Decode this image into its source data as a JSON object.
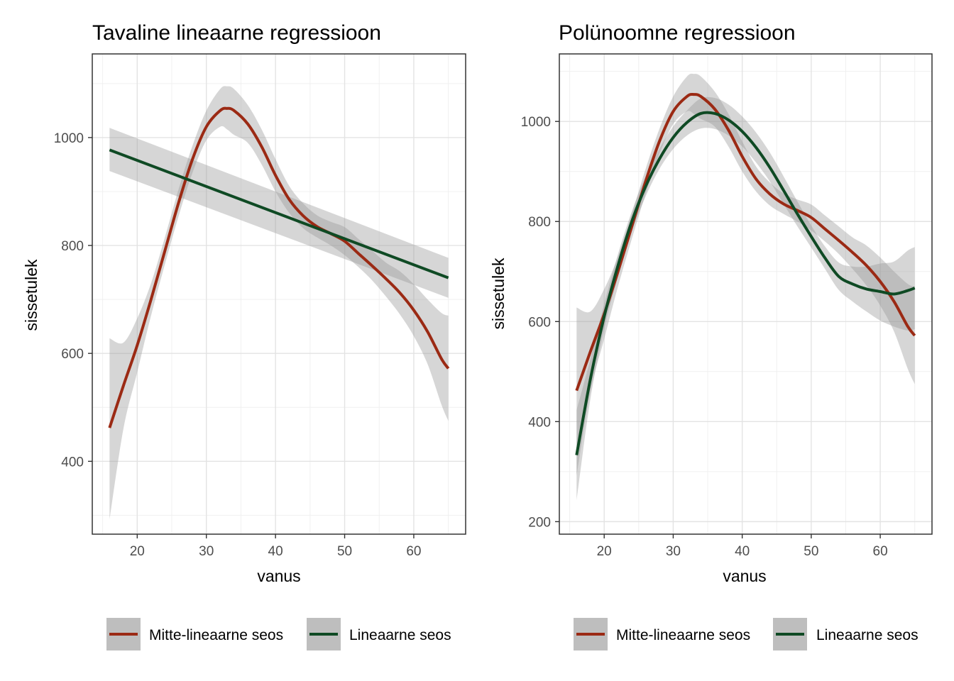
{
  "chart_data": [
    {
      "type": "line",
      "title": "Tavaline lineaarne regressioon",
      "xlabel": "vanus",
      "ylabel": "sissetulek",
      "xlim": [
        13.5,
        67.5
      ],
      "ylim": [
        265,
        1155
      ],
      "x_ticks": [
        20,
        30,
        40,
        50,
        60
      ],
      "y_ticks": [
        400,
        600,
        800,
        1000
      ],
      "grid": true,
      "legend_position": "bottom",
      "series": [
        {
          "name": "Mitte-lineaarne seos",
          "color": "#9B2A14",
          "x": [
            16,
            18,
            20,
            22,
            24,
            26,
            28,
            30,
            32,
            33,
            34,
            36,
            38,
            40,
            42,
            44,
            46,
            48,
            50,
            52,
            54,
            56,
            58,
            60,
            62,
            64,
            65
          ],
          "y": [
            462,
            540,
            615,
            700,
            790,
            880,
            960,
            1020,
            1050,
            1054,
            1050,
            1025,
            983,
            930,
            885,
            855,
            835,
            822,
            808,
            785,
            762,
            738,
            712,
            680,
            640,
            590,
            572
          ],
          "ci_lower": [
            292,
            460,
            565,
            670,
            765,
            855,
            935,
            995,
            1020,
            1015,
            1005,
            990,
            950,
            900,
            860,
            832,
            815,
            800,
            782,
            760,
            735,
            705,
            672,
            632,
            580,
            505,
            475
          ],
          "ci_upper": [
            628,
            620,
            665,
            730,
            815,
            905,
            985,
            1050,
            1090,
            1095,
            1090,
            1060,
            1015,
            960,
            910,
            878,
            856,
            844,
            834,
            812,
            790,
            768,
            752,
            728,
            700,
            675,
            670
          ]
        },
        {
          "name": "Lineaarne seos",
          "color": "#0F4A24",
          "x": [
            16,
            65
          ],
          "y": [
            977,
            740
          ],
          "ci_lower": [
            938,
            703
          ],
          "ci_upper": [
            1018,
            777
          ]
        }
      ]
    },
    {
      "type": "line",
      "title": "Polünoomne regressioon",
      "xlabel": "vanus",
      "ylabel": "sissetulek",
      "xlim": [
        13.5,
        67.5
      ],
      "ylim": [
        175,
        1135
      ],
      "x_ticks": [
        20,
        30,
        40,
        50,
        60
      ],
      "y_ticks": [
        200,
        400,
        600,
        800,
        1000
      ],
      "grid": true,
      "legend_position": "bottom",
      "series": [
        {
          "name": "Mitte-lineaarne seos",
          "color": "#9B2A14",
          "x": [
            16,
            18,
            20,
            22,
            24,
            26,
            28,
            30,
            32,
            33,
            34,
            36,
            38,
            40,
            42,
            44,
            46,
            48,
            50,
            52,
            54,
            56,
            58,
            60,
            62,
            64,
            65
          ],
          "y": [
            462,
            540,
            615,
            700,
            790,
            880,
            960,
            1020,
            1050,
            1054,
            1050,
            1025,
            983,
            930,
            885,
            855,
            835,
            822,
            808,
            785,
            762,
            738,
            712,
            680,
            640,
            590,
            572
          ],
          "ci_lower": [
            292,
            460,
            565,
            670,
            765,
            855,
            935,
            995,
            1020,
            1015,
            1005,
            990,
            950,
            900,
            860,
            832,
            815,
            800,
            782,
            760,
            735,
            705,
            672,
            632,
            580,
            505,
            475
          ],
          "ci_upper": [
            628,
            620,
            665,
            730,
            815,
            905,
            985,
            1050,
            1090,
            1095,
            1090,
            1060,
            1015,
            960,
            910,
            878,
            856,
            844,
            834,
            812,
            790,
            768,
            752,
            728,
            700,
            675,
            670
          ]
        },
        {
          "name": "Lineaarne seos",
          "color": "#0F4A24",
          "x": [
            16,
            18,
            20,
            22,
            24,
            26,
            28,
            30,
            32,
            34,
            36,
            38,
            40,
            42,
            44,
            46,
            48,
            50,
            52,
            54,
            56,
            58,
            60,
            62,
            64,
            65
          ],
          "y": [
            333,
            485,
            610,
            712,
            800,
            870,
            925,
            968,
            998,
            1016,
            1016,
            1003,
            980,
            948,
            908,
            862,
            815,
            770,
            727,
            690,
            675,
            665,
            660,
            655,
            662,
            667
          ],
          "ci_lower": [
            243,
            445,
            585,
            690,
            780,
            850,
            905,
            945,
            972,
            986,
            985,
            972,
            950,
            918,
            880,
            835,
            790,
            748,
            705,
            663,
            640,
            620,
            602,
            590,
            582,
            585
          ],
          "ci_upper": [
            423,
            525,
            635,
            735,
            820,
            890,
            945,
            990,
            1022,
            1046,
            1047,
            1034,
            1010,
            978,
            938,
            890,
            840,
            792,
            750,
            718,
            710,
            710,
            716,
            720,
            742,
            749
          ]
        }
      ]
    }
  ]
}
